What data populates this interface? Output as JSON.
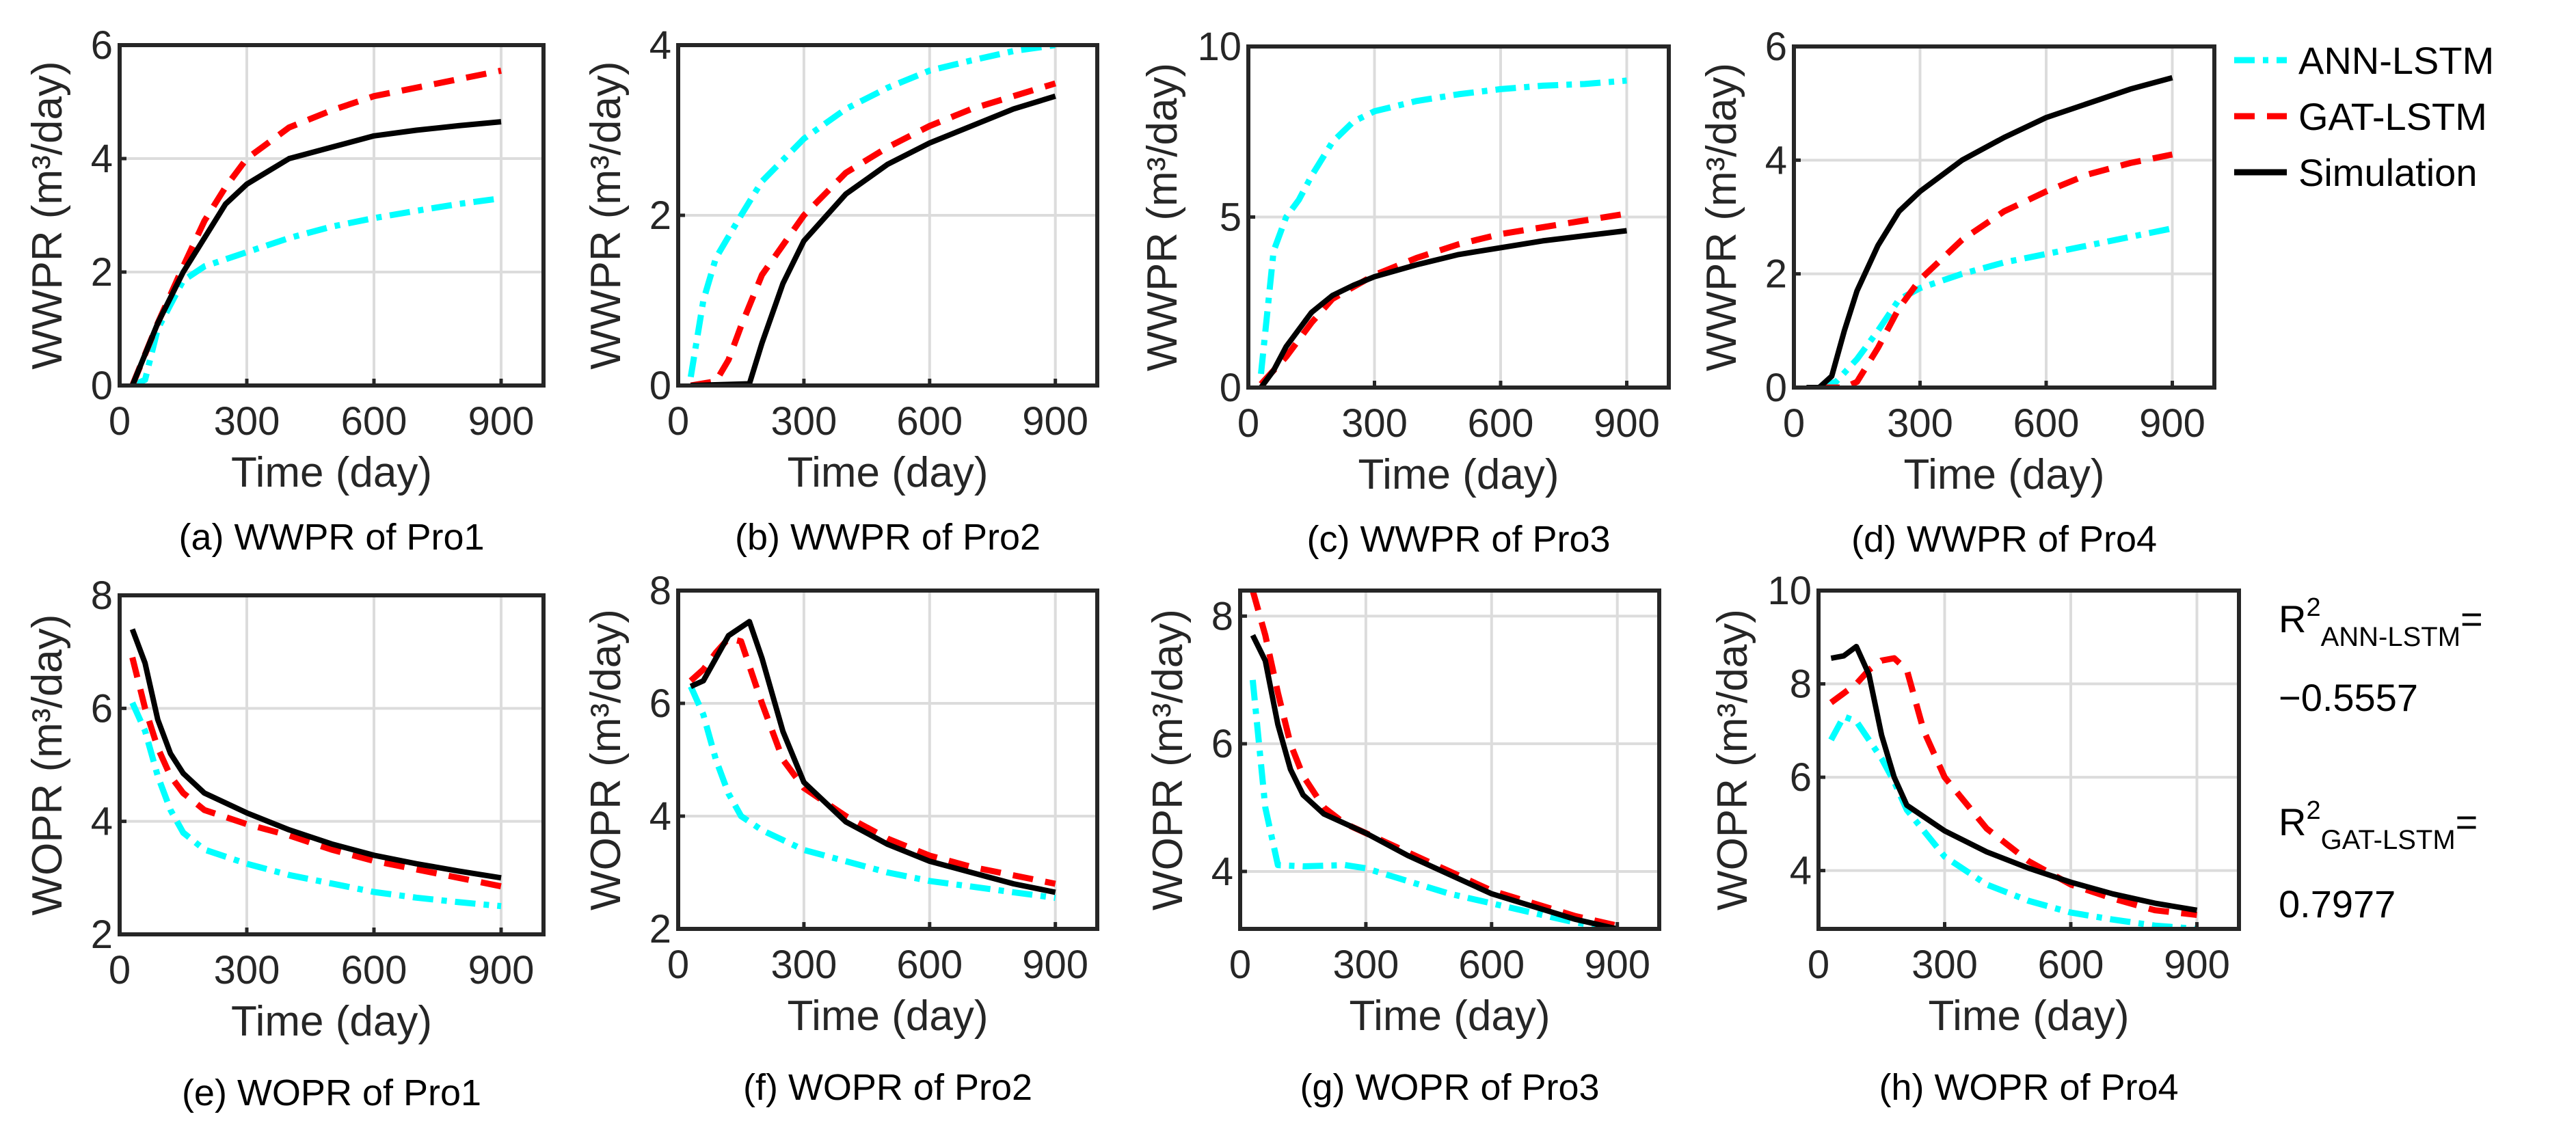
{
  "legend": {
    "items": [
      {
        "label": "ANN-LSTM",
        "color": "#00FFFF",
        "style": "dashdot"
      },
      {
        "label": "GAT-LSTM",
        "color": "#FF0000",
        "style": "dashed"
      },
      {
        "label": "Simulation",
        "color": "#000000",
        "style": "solid"
      }
    ]
  },
  "r2": [
    {
      "base": "R",
      "sup": "2",
      "sub": "ANN-LSTM",
      "eq": "=",
      "value": "−0.5557"
    },
    {
      "base": "R",
      "sup": "2",
      "sub": "GAT-LSTM",
      "eq": "=",
      "value": "0.7977"
    }
  ],
  "chart_data": [
    {
      "type": "line",
      "caption": "(a) WWPR of Pro1",
      "xlabel": "Time (day)",
      "ylabel": "WWPR (m³/day)",
      "xlim": [
        0,
        1000
      ],
      "ylim": [
        0,
        6
      ],
      "xticks": [
        "0",
        "300",
        "600",
        "900"
      ],
      "xtick_values": [
        0,
        300,
        600,
        900
      ],
      "yticks": [
        "0",
        "2",
        "4",
        "6"
      ],
      "ytick_values": [
        0,
        2,
        4,
        6
      ],
      "grid": true,
      "series": [
        {
          "name": "ANN-LSTM",
          "x": [
            30,
            60,
            90,
            150,
            200,
            300,
            400,
            500,
            600,
            700,
            800,
            900
          ],
          "y": [
            0,
            0.1,
            1.0,
            1.85,
            2.1,
            2.35,
            2.6,
            2.8,
            2.95,
            3.08,
            3.2,
            3.3
          ]
        },
        {
          "name": "GAT-LSTM",
          "x": [
            30,
            90,
            150,
            200,
            250,
            300,
            400,
            500,
            600,
            700,
            800,
            900
          ],
          "y": [
            0,
            1.1,
            2.1,
            2.9,
            3.5,
            4.0,
            4.55,
            4.85,
            5.1,
            5.25,
            5.4,
            5.55
          ]
        },
        {
          "name": "Simulation",
          "x": [
            30,
            90,
            150,
            200,
            250,
            300,
            400,
            500,
            600,
            700,
            800,
            900
          ],
          "y": [
            0,
            1.1,
            2.0,
            2.6,
            3.2,
            3.55,
            4.0,
            4.2,
            4.4,
            4.5,
            4.58,
            4.65
          ]
        }
      ]
    },
    {
      "type": "line",
      "caption": "(b) WWPR of Pro2",
      "xlabel": "Time (day)",
      "ylabel": "WWPR (m³/day)",
      "xlim": [
        0,
        1000
      ],
      "ylim": [
        0,
        4
      ],
      "xticks": [
        "0",
        "300",
        "600",
        "900"
      ],
      "xtick_values": [
        0,
        300,
        600,
        900
      ],
      "yticks": [
        "0",
        "2",
        "4"
      ],
      "ytick_values": [
        0,
        2,
        4
      ],
      "grid": true,
      "series": [
        {
          "name": "ANN-LSTM",
          "x": [
            30,
            60,
            90,
            150,
            200,
            300,
            400,
            500,
            600,
            700,
            800,
            900
          ],
          "y": [
            0.1,
            1.0,
            1.5,
            2.0,
            2.4,
            2.9,
            3.25,
            3.5,
            3.7,
            3.82,
            3.93,
            4.0
          ]
        },
        {
          "name": "GAT-LSTM",
          "x": [
            30,
            90,
            120,
            150,
            200,
            300,
            400,
            500,
            600,
            700,
            800,
            900
          ],
          "y": [
            0,
            0.05,
            0.3,
            0.7,
            1.3,
            2.0,
            2.5,
            2.8,
            3.05,
            3.25,
            3.4,
            3.55
          ]
        },
        {
          "name": "Simulation",
          "x": [
            30,
            170,
            200,
            250,
            300,
            400,
            500,
            600,
            700,
            800,
            900
          ],
          "y": [
            0,
            0.02,
            0.5,
            1.2,
            1.7,
            2.25,
            2.6,
            2.85,
            3.05,
            3.25,
            3.4
          ]
        }
      ]
    },
    {
      "type": "line",
      "caption": "(c) WWPR of Pro3",
      "xlabel": "Time (day)",
      "ylabel": "WWPR (m³/day)",
      "xlim": [
        0,
        1000
      ],
      "ylim": [
        0,
        10
      ],
      "xticks": [
        "0",
        "300",
        "600",
        "900"
      ],
      "xtick_values": [
        0,
        300,
        600,
        900
      ],
      "yticks": [
        "0",
        "5",
        "10"
      ],
      "ytick_values": [
        0,
        5,
        10
      ],
      "grid": true,
      "series": [
        {
          "name": "ANN-LSTM",
          "x": [
            30,
            60,
            90,
            120,
            150,
            200,
            250,
            300,
            400,
            500,
            600,
            700,
            800,
            900
          ],
          "y": [
            0.4,
            4.0,
            5.0,
            5.5,
            6.2,
            7.2,
            7.8,
            8.1,
            8.4,
            8.6,
            8.75,
            8.85,
            8.9,
            9.0
          ]
        },
        {
          "name": "GAT-LSTM",
          "x": [
            30,
            90,
            150,
            200,
            300,
            400,
            500,
            600,
            700,
            800,
            900
          ],
          "y": [
            0.1,
            0.9,
            1.9,
            2.6,
            3.3,
            3.8,
            4.2,
            4.5,
            4.7,
            4.9,
            5.1
          ]
        },
        {
          "name": "Simulation",
          "x": [
            30,
            60,
            90,
            150,
            200,
            250,
            300,
            400,
            500,
            600,
            700,
            800,
            900
          ],
          "y": [
            0,
            0.5,
            1.2,
            2.2,
            2.7,
            3.0,
            3.25,
            3.6,
            3.9,
            4.1,
            4.3,
            4.45,
            4.6
          ]
        }
      ]
    },
    {
      "type": "line",
      "caption": "(d) WWPR of Pro4",
      "xlabel": "Time (day)",
      "ylabel": "WWPR (m³/day)",
      "xlim": [
        0,
        1000
      ],
      "ylim": [
        0,
        6
      ],
      "xticks": [
        "0",
        "300",
        "600",
        "900"
      ],
      "xtick_values": [
        0,
        300,
        600,
        900
      ],
      "yticks": [
        "0",
        "2",
        "4",
        "6"
      ],
      "ytick_values": [
        0,
        2,
        4,
        6
      ],
      "grid": true,
      "series": [
        {
          "name": "ANN-LSTM",
          "x": [
            60,
            100,
            150,
            200,
            250,
            300,
            400,
            500,
            600,
            700,
            800,
            900
          ],
          "y": [
            0,
            0.1,
            0.5,
            1.0,
            1.55,
            1.75,
            2.0,
            2.2,
            2.35,
            2.5,
            2.65,
            2.8
          ]
        },
        {
          "name": "GAT-LSTM",
          "x": [
            60,
            120,
            150,
            200,
            250,
            300,
            400,
            500,
            600,
            700,
            800,
            900
          ],
          "y": [
            0,
            0,
            0.1,
            0.7,
            1.4,
            1.9,
            2.6,
            3.1,
            3.45,
            3.75,
            3.95,
            4.1
          ]
        },
        {
          "name": "Simulation",
          "x": [
            30,
            60,
            90,
            120,
            150,
            200,
            250,
            300,
            400,
            500,
            600,
            700,
            800,
            900
          ],
          "y": [
            0,
            0,
            0.2,
            1.0,
            1.7,
            2.5,
            3.1,
            3.45,
            4.0,
            4.4,
            4.75,
            5.0,
            5.25,
            5.45
          ]
        }
      ]
    },
    {
      "type": "line",
      "caption": "(e) WOPR of Pro1",
      "xlabel": "Time (day)",
      "ylabel": "WOPR (m³/day)",
      "xlim": [
        0,
        1000
      ],
      "ylim": [
        2,
        8
      ],
      "xticks": [
        "0",
        "300",
        "600",
        "900"
      ],
      "xtick_values": [
        0,
        300,
        600,
        900
      ],
      "yticks": [
        "2",
        "4",
        "6",
        "8"
      ],
      "ytick_values": [
        2,
        4,
        6,
        8
      ],
      "grid": true,
      "series": [
        {
          "name": "ANN-LSTM",
          "x": [
            30,
            60,
            90,
            120,
            150,
            200,
            300,
            400,
            500,
            600,
            700,
            800,
            900
          ],
          "y": [
            6.1,
            5.6,
            4.8,
            4.2,
            3.8,
            3.5,
            3.25,
            3.05,
            2.9,
            2.75,
            2.65,
            2.57,
            2.5
          ]
        },
        {
          "name": "GAT-LSTM",
          "x": [
            30,
            60,
            90,
            120,
            150,
            200,
            300,
            400,
            500,
            600,
            700,
            800,
            900
          ],
          "y": [
            6.9,
            6.0,
            5.3,
            4.8,
            4.5,
            4.2,
            3.95,
            3.75,
            3.5,
            3.3,
            3.15,
            3.0,
            2.85
          ]
        },
        {
          "name": "Simulation",
          "x": [
            30,
            60,
            90,
            120,
            150,
            200,
            300,
            400,
            500,
            600,
            700,
            800,
            900
          ],
          "y": [
            7.4,
            6.8,
            5.8,
            5.2,
            4.85,
            4.5,
            4.15,
            3.85,
            3.6,
            3.4,
            3.25,
            3.12,
            3.0
          ]
        }
      ]
    },
    {
      "type": "line",
      "caption": "(f) WOPR of Pro2",
      "xlabel": "Time (day)",
      "ylabel": "WOPR (m³/day)",
      "xlim": [
        0,
        1000
      ],
      "ylim": [
        2,
        8
      ],
      "xticks": [
        "0",
        "300",
        "600",
        "900"
      ],
      "xtick_values": [
        0,
        300,
        600,
        900
      ],
      "yticks": [
        "2",
        "4",
        "6",
        "8"
      ],
      "ytick_values": [
        2,
        4,
        6,
        8
      ],
      "grid": true,
      "series": [
        {
          "name": "ANN-LSTM",
          "x": [
            30,
            60,
            90,
            120,
            150,
            200,
            300,
            400,
            500,
            600,
            700,
            800,
            900
          ],
          "y": [
            6.3,
            5.8,
            5.0,
            4.4,
            4.0,
            3.75,
            3.4,
            3.2,
            3.0,
            2.85,
            2.75,
            2.65,
            2.55
          ]
        },
        {
          "name": "GAT-LSTM",
          "x": [
            30,
            60,
            90,
            120,
            150,
            200,
            250,
            300,
            400,
            500,
            600,
            700,
            800,
            900
          ],
          "y": [
            6.4,
            6.6,
            6.9,
            7.15,
            7.1,
            6.0,
            5.0,
            4.5,
            4.0,
            3.6,
            3.3,
            3.1,
            2.95,
            2.8
          ]
        },
        {
          "name": "Simulation",
          "x": [
            30,
            60,
            90,
            120,
            170,
            200,
            250,
            300,
            400,
            500,
            600,
            700,
            800,
            900
          ],
          "y": [
            6.3,
            6.4,
            6.8,
            7.2,
            7.45,
            6.8,
            5.5,
            4.6,
            3.9,
            3.5,
            3.2,
            3.0,
            2.8,
            2.65
          ]
        }
      ]
    },
    {
      "type": "line",
      "caption": "(g) WOPR of Pro3",
      "xlabel": "Time (day)",
      "ylabel": "WOPR (m³/day)",
      "xlim": [
        0,
        1000
      ],
      "ylim": [
        3.1,
        8.4
      ],
      "xticks": [
        "0",
        "300",
        "600",
        "900"
      ],
      "xtick_values": [
        0,
        300,
        600,
        900
      ],
      "yticks": [
        "4",
        "6",
        "8"
      ],
      "ytick_values": [
        4,
        6,
        8
      ],
      "grid": true,
      "series": [
        {
          "name": "ANN-LSTM",
          "x": [
            30,
            60,
            90,
            150,
            250,
            300,
            400,
            500,
            600,
            700,
            800,
            900
          ],
          "y": [
            7.0,
            5.0,
            4.1,
            4.08,
            4.1,
            4.05,
            3.85,
            3.65,
            3.5,
            3.35,
            3.2,
            3.1
          ]
        },
        {
          "name": "GAT-LSTM",
          "x": [
            30,
            60,
            90,
            120,
            150,
            200,
            250,
            300,
            400,
            500,
            600,
            700,
            800,
            900
          ],
          "y": [
            8.4,
            7.7,
            6.8,
            6.0,
            5.5,
            5.0,
            4.75,
            4.6,
            4.3,
            4.0,
            3.7,
            3.5,
            3.3,
            3.15
          ]
        },
        {
          "name": "Simulation",
          "x": [
            30,
            60,
            90,
            120,
            150,
            200,
            250,
            300,
            400,
            500,
            600,
            700,
            800,
            900
          ],
          "y": [
            7.7,
            7.3,
            6.3,
            5.6,
            5.2,
            4.9,
            4.75,
            4.6,
            4.25,
            3.95,
            3.65,
            3.45,
            3.25,
            3.1
          ]
        }
      ]
    },
    {
      "type": "line",
      "caption": "(h) WOPR of Pro4",
      "xlabel": "Time (day)",
      "ylabel": "WOPR (m³/day)",
      "xlim": [
        0,
        1000
      ],
      "ylim": [
        2.75,
        10
      ],
      "xticks": [
        "0",
        "300",
        "600",
        "900"
      ],
      "xtick_values": [
        0,
        300,
        600,
        900
      ],
      "yticks": [
        "4",
        "6",
        "8",
        "10"
      ],
      "ytick_values": [
        4,
        6,
        8,
        10
      ],
      "grid": true,
      "series": [
        {
          "name": "ANN-LSTM",
          "x": [
            30,
            60,
            90,
            120,
            150,
            180,
            210,
            300,
            400,
            500,
            600,
            700,
            800,
            900
          ],
          "y": [
            6.8,
            7.3,
            7.2,
            6.8,
            6.4,
            5.9,
            5.3,
            4.3,
            3.7,
            3.35,
            3.1,
            2.95,
            2.82,
            2.75
          ]
        },
        {
          "name": "GAT-LSTM",
          "x": [
            30,
            60,
            90,
            120,
            150,
            180,
            210,
            250,
            300,
            400,
            500,
            600,
            700,
            800,
            900
          ],
          "y": [
            7.6,
            7.8,
            8.0,
            8.3,
            8.5,
            8.55,
            8.3,
            7.0,
            6.0,
            4.9,
            4.2,
            3.7,
            3.4,
            3.15,
            3.05
          ]
        },
        {
          "name": "Simulation",
          "x": [
            30,
            60,
            90,
            120,
            150,
            180,
            210,
            300,
            400,
            500,
            600,
            700,
            800,
            900
          ],
          "y": [
            8.55,
            8.6,
            8.8,
            8.2,
            6.9,
            6.0,
            5.4,
            4.85,
            4.4,
            4.05,
            3.75,
            3.5,
            3.3,
            3.15
          ]
        }
      ]
    }
  ]
}
